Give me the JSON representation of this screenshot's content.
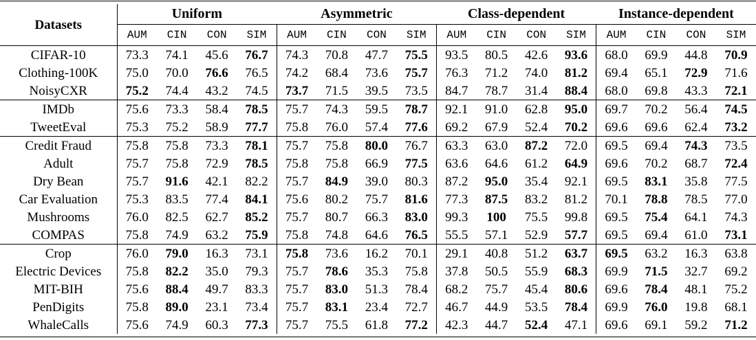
{
  "table": {
    "corner_header": "Datasets",
    "column_groups": [
      "Uniform",
      "Asymmetric",
      "Class-dependent",
      "Instance-dependent"
    ],
    "subcolumns": [
      "AUM",
      "CIN",
      "CON",
      "SIM"
    ],
    "row_groups": [
      {
        "rows": [
          {
            "dataset": "CIFAR-10",
            "values": [
              "73.3",
              "74.1",
              "45.6",
              "76.7",
              "74.3",
              "70.8",
              "47.7",
              "75.5",
              "93.5",
              "80.5",
              "42.6",
              "93.6",
              "68.0",
              "69.9",
              "44.8",
              "70.9"
            ],
            "bold": [
              3,
              7,
              11,
              15
            ]
          },
          {
            "dataset": "Clothing-100K",
            "values": [
              "75.0",
              "70.0",
              "76.6",
              "76.5",
              "74.2",
              "68.4",
              "73.6",
              "75.7",
              "76.3",
              "71.2",
              "74.0",
              "81.2",
              "69.4",
              "65.1",
              "72.9",
              "71.6"
            ],
            "bold": [
              2,
              7,
              11,
              14
            ]
          },
          {
            "dataset": "NoisyCXR",
            "values": [
              "75.2",
              "74.4",
              "43.2",
              "74.5",
              "73.7",
              "71.5",
              "39.5",
              "73.5",
              "84.7",
              "78.7",
              "31.4",
              "88.4",
              "68.0",
              "69.8",
              "43.3",
              "72.1"
            ],
            "bold": [
              0,
              4,
              11,
              15
            ]
          }
        ]
      },
      {
        "rows": [
          {
            "dataset": "IMDb",
            "values": [
              "75.6",
              "73.3",
              "58.4",
              "78.5",
              "75.7",
              "74.3",
              "59.5",
              "78.7",
              "92.1",
              "91.0",
              "62.8",
              "95.0",
              "69.7",
              "70.2",
              "56.4",
              "74.5"
            ],
            "bold": [
              3,
              7,
              11,
              15
            ]
          },
          {
            "dataset": "TweetEval",
            "values": [
              "75.3",
              "75.2",
              "58.9",
              "77.7",
              "75.8",
              "76.0",
              "57.4",
              "77.6",
              "69.2",
              "67.9",
              "52.4",
              "70.2",
              "69.6",
              "69.6",
              "62.4",
              "73.2"
            ],
            "bold": [
              3,
              7,
              11,
              15
            ]
          }
        ]
      },
      {
        "rows": [
          {
            "dataset": "Credit Fraud",
            "values": [
              "75.8",
              "75.8",
              "73.3",
              "78.1",
              "75.7",
              "75.8",
              "80.0",
              "76.7",
              "63.3",
              "63.0",
              "87.2",
              "72.0",
              "69.5",
              "69.4",
              "74.3",
              "73.5"
            ],
            "bold": [
              3,
              6,
              10,
              14
            ]
          },
          {
            "dataset": "Adult",
            "values": [
              "75.7",
              "75.8",
              "72.9",
              "78.5",
              "75.8",
              "75.8",
              "66.9",
              "77.5",
              "63.6",
              "64.6",
              "61.2",
              "64.9",
              "69.6",
              "70.2",
              "68.7",
              "72.4"
            ],
            "bold": [
              3,
              7,
              11,
              15
            ]
          },
          {
            "dataset": "Dry Bean",
            "values": [
              "75.7",
              "91.6",
              "42.1",
              "82.2",
              "75.7",
              "84.9",
              "39.0",
              "80.3",
              "87.2",
              "95.0",
              "35.4",
              "92.1",
              "69.5",
              "83.1",
              "35.8",
              "77.5"
            ],
            "bold": [
              1,
              5,
              9,
              13
            ]
          },
          {
            "dataset": "Car Evaluation",
            "values": [
              "75.3",
              "83.5",
              "77.4",
              "84.1",
              "75.6",
              "80.2",
              "75.7",
              "81.6",
              "77.3",
              "87.5",
              "83.2",
              "81.2",
              "70.1",
              "78.8",
              "78.5",
              "77.0"
            ],
            "bold": [
              3,
              7,
              9,
              13
            ]
          },
          {
            "dataset": "Mushrooms",
            "values": [
              "76.0",
              "82.5",
              "62.7",
              "85.2",
              "75.7",
              "80.7",
              "66.3",
              "83.0",
              "99.3",
              "100",
              "75.5",
              "99.8",
              "69.5",
              "75.4",
              "64.1",
              "74.3"
            ],
            "bold": [
              3,
              7,
              9,
              13
            ]
          },
          {
            "dataset": "COMPAS",
            "values": [
              "75.8",
              "74.9",
              "63.2",
              "75.9",
              "75.8",
              "74.8",
              "64.6",
              "76.5",
              "55.5",
              "57.1",
              "52.9",
              "57.7",
              "69.5",
              "69.4",
              "61.0",
              "73.1"
            ],
            "bold": [
              3,
              7,
              11,
              15
            ]
          }
        ]
      },
      {
        "rows": [
          {
            "dataset": "Crop",
            "values": [
              "76.0",
              "79.0",
              "16.3",
              "73.1",
              "75.8",
              "73.6",
              "16.2",
              "70.1",
              "29.1",
              "40.8",
              "51.2",
              "63.7",
              "69.5",
              "63.2",
              "16.3",
              "63.8"
            ],
            "bold": [
              1,
              4,
              11,
              12
            ]
          },
          {
            "dataset": "Electric Devices",
            "values": [
              "75.8",
              "82.2",
              "35.0",
              "79.3",
              "75.7",
              "78.6",
              "35.3",
              "75.8",
              "37.8",
              "50.5",
              "55.9",
              "68.3",
              "69.9",
              "71.5",
              "32.7",
              "69.2"
            ],
            "bold": [
              1,
              5,
              11,
              13
            ]
          },
          {
            "dataset": "MIT-BIH",
            "values": [
              "75.6",
              "88.4",
              "49.7",
              "83.3",
              "75.7",
              "83.0",
              "51.3",
              "78.4",
              "68.2",
              "75.7",
              "45.4",
              "80.6",
              "69.6",
              "78.4",
              "48.1",
              "75.2"
            ],
            "bold": [
              1,
              5,
              11,
              13
            ]
          },
          {
            "dataset": "PenDigits",
            "values": [
              "75.8",
              "89.0",
              "23.1",
              "73.4",
              "75.7",
              "83.1",
              "23.4",
              "72.7",
              "46.7",
              "44.9",
              "53.5",
              "78.4",
              "69.9",
              "76.0",
              "19.8",
              "68.1"
            ],
            "bold": [
              1,
              5,
              11,
              13
            ]
          },
          {
            "dataset": "WhaleCalls",
            "values": [
              "75.6",
              "74.9",
              "60.3",
              "77.3",
              "75.7",
              "75.5",
              "61.8",
              "77.2",
              "42.3",
              "44.7",
              "52.4",
              "47.1",
              "69.6",
              "69.1",
              "59.2",
              "71.2"
            ],
            "bold": [
              3,
              7,
              10,
              15
            ]
          }
        ]
      }
    ]
  },
  "colors": {
    "text": "#000000",
    "background": "#ffffff",
    "rule": "#000000"
  }
}
